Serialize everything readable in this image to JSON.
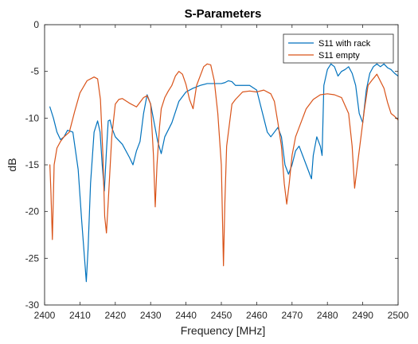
{
  "chart_data": {
    "type": "line",
    "title": "S-Parameters",
    "xlabel": "Frequency [MHz]",
    "ylabel": "dB",
    "xlim": [
      2400,
      2500
    ],
    "ylim": [
      -30,
      0
    ],
    "xticks": [
      2400,
      2410,
      2420,
      2430,
      2440,
      2450,
      2460,
      2470,
      2480,
      2490,
      2500
    ],
    "yticks": [
      0,
      -5,
      -10,
      -15,
      -20,
      -25,
      -30
    ],
    "grid": false,
    "legend_position": "top-right",
    "series": [
      {
        "name": "S11 with rack",
        "color": "#0072BD",
        "x": [
          2401.5,
          2402.5,
          2403.5,
          2404.5,
          2405.5,
          2406.5,
          2408,
          2409.5,
          2410.5,
          2411.3,
          2411.8,
          2412.3,
          2413,
          2414,
          2415,
          2415.7,
          2416.3,
          2416.9,
          2417.5,
          2418,
          2418.5,
          2419,
          2420,
          2422,
          2424,
          2425,
          2426,
          2427,
          2428,
          2429,
          2430,
          2431,
          2432,
          2433,
          2434,
          2436,
          2438,
          2440,
          2442,
          2444,
          2446,
          2448,
          2450,
          2451,
          2452,
          2453,
          2454,
          2456,
          2458,
          2460,
          2461,
          2462,
          2463,
          2464,
          2465,
          2466,
          2467,
          2468,
          2469,
          2470,
          2471,
          2472,
          2473,
          2474,
          2475,
          2475.5,
          2476,
          2477,
          2478,
          2478.5,
          2479,
          2480,
          2481,
          2482,
          2483,
          2484,
          2485,
          2486,
          2487,
          2488,
          2489,
          2490,
          2491,
          2492,
          2493,
          2494,
          2495,
          2496,
          2497,
          2498,
          2499,
          2500
        ],
        "values": [
          -8.8,
          -10,
          -11.5,
          -12.3,
          -12,
          -11.3,
          -11.5,
          -15.5,
          -21,
          -25,
          -27.5,
          -24,
          -17,
          -11.5,
          -10.3,
          -11.5,
          -15,
          -17.8,
          -13.5,
          -10.3,
          -10.2,
          -11,
          -12,
          -12.8,
          -14.2,
          -15,
          -13.5,
          -12.5,
          -9.5,
          -7.5,
          -8.5,
          -10.5,
          -12.5,
          -13.8,
          -12,
          -10.5,
          -8.2,
          -7.2,
          -6.8,
          -6.5,
          -6.3,
          -6.3,
          -6.3,
          -6.2,
          -6,
          -6.1,
          -6.5,
          -6.5,
          -6.5,
          -7,
          -8.5,
          -10,
          -11.5,
          -12,
          -11.5,
          -11,
          -12,
          -15,
          -16,
          -15,
          -13.5,
          -13,
          -14,
          -15,
          -16,
          -16.5,
          -14,
          -12,
          -13,
          -14,
          -6.5,
          -4.8,
          -4.2,
          -4.5,
          -5.5,
          -5,
          -4.8,
          -4.5,
          -5.2,
          -6.5,
          -9.5,
          -10.5,
          -7,
          -5.2,
          -4.5,
          -4.2,
          -4.5,
          -4.2,
          -4.6,
          -4.8,
          -5.2,
          -5.5
        ]
      },
      {
        "name": "S11 empty",
        "color": "#D95319",
        "x": [
          2401.5,
          2401.8,
          2402.2,
          2402.7,
          2403.5,
          2404.5,
          2405.5,
          2407,
          2408.5,
          2410,
          2412,
          2414,
          2415,
          2415.8,
          2416.5,
          2417,
          2417.5,
          2418,
          2419,
          2420,
          2421,
          2422,
          2424,
          2426,
          2428,
          2429,
          2430,
          2430.8,
          2431.3,
          2431.8,
          2432.5,
          2433,
          2434,
          2435,
          2436,
          2437,
          2438,
          2439,
          2440,
          2441,
          2442,
          2443,
          2444,
          2445,
          2446,
          2447,
          2448,
          2449,
          2450,
          2450.6,
          2451,
          2451.5,
          2452,
          2453,
          2454,
          2456,
          2458,
          2460,
          2462,
          2464,
          2465,
          2466,
          2467,
          2467.8,
          2468.5,
          2469.2,
          2470,
          2471,
          2472,
          2473,
          2474,
          2475,
          2476,
          2478,
          2480,
          2482,
          2484,
          2486,
          2487,
          2487.7,
          2488.5,
          2489.5,
          2490.5,
          2491.5,
          2492.5,
          2494,
          2496,
          2497,
          2498,
          2499,
          2500
        ],
        "values": [
          -15,
          -18,
          -23,
          -15,
          -13.2,
          -12.5,
          -12,
          -11.5,
          -9.3,
          -7.3,
          -6,
          -5.6,
          -5.8,
          -8,
          -14,
          -20.5,
          -22.3,
          -19,
          -12,
          -8.5,
          -8,
          -7.9,
          -8.4,
          -8.8,
          -7.8,
          -7.6,
          -8.5,
          -14,
          -19.5,
          -15,
          -11,
          -9,
          -7.8,
          -7.1,
          -6.5,
          -5.5,
          -5,
          -5.3,
          -6.4,
          -8,
          -9,
          -6.5,
          -5.5,
          -4.5,
          -4.2,
          -4.3,
          -6,
          -9.5,
          -15,
          -25.8,
          -19,
          -13,
          -11.5,
          -8.5,
          -8,
          -7.2,
          -7.1,
          -7.2,
          -7,
          -7.4,
          -8.2,
          -10.5,
          -13,
          -17,
          -19.2,
          -17,
          -14,
          -12,
          -11,
          -10,
          -9,
          -8.5,
          -8,
          -7.5,
          -7.4,
          -7.5,
          -7.8,
          -9.5,
          -13,
          -17.5,
          -15,
          -12,
          -9,
          -6.5,
          -6,
          -5.3,
          -6.8,
          -8.3,
          -9.5,
          -9.8,
          -10.2
        ]
      }
    ]
  }
}
